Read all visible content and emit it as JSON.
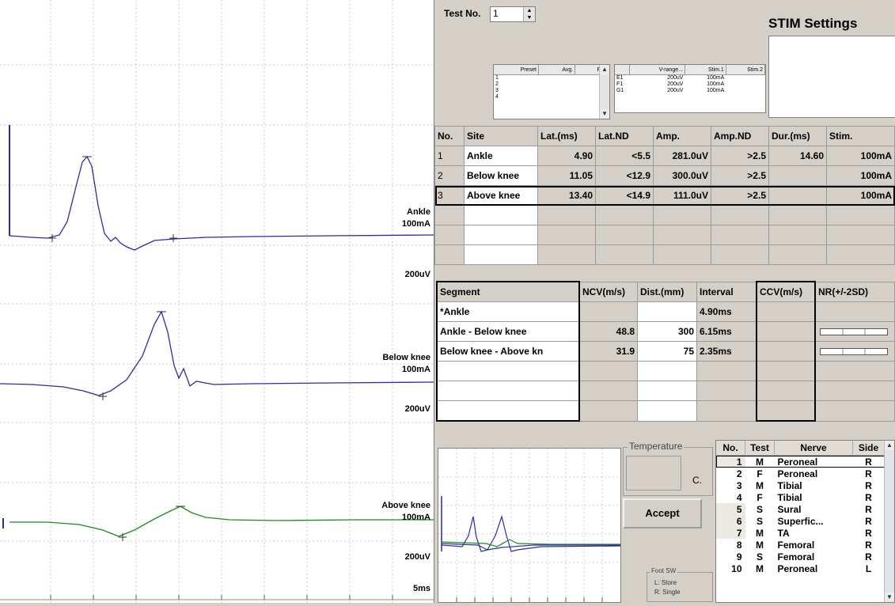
{
  "waveforms": {
    "traces": [
      {
        "site": "Ankle",
        "stim": "100mA",
        "scale": "200uV",
        "color": "#2b2ba8"
      },
      {
        "site": "Below knee",
        "stim": "100mA",
        "scale": "200uV",
        "color": "#2b2ba8"
      },
      {
        "site": "Above knee",
        "stim": "100mA",
        "scale": "200uV",
        "color": "#1f8a1f"
      }
    ],
    "time_scale": "5ms"
  },
  "header": {
    "test_no_label": "Test No.",
    "test_no_value": "1",
    "stim_settings_title": "STIM Settings"
  },
  "preset_table": {
    "columns": [
      "Preset",
      "Avg.",
      "Rej."
    ],
    "rows": [
      "1",
      "2",
      "3",
      "4"
    ]
  },
  "vrange_table": {
    "columns": [
      "V-range...",
      "Stim.1",
      "Stim.2"
    ],
    "rows": [
      {
        "name": "E1",
        "vrange": "200uV",
        "stim1": "100mA"
      },
      {
        "name": "F1",
        "vrange": "200uV",
        "stim1": "100mA"
      },
      {
        "name": "G1",
        "vrange": "200uV",
        "stim1": "100mA"
      }
    ]
  },
  "site_table": {
    "columns": [
      "No.",
      "Site",
      "Lat.(ms)",
      "Lat.ND",
      "Amp.",
      "Amp.ND",
      "Dur.(ms)",
      "Stim."
    ],
    "rows": [
      {
        "no": "1",
        "site": "Ankle",
        "lat": "4.90",
        "latnd": "<5.5",
        "amp": "281.0uV",
        "ampnd": ">2.5",
        "dur": "14.60",
        "stim": "100mA"
      },
      {
        "no": "2",
        "site": "Below knee",
        "lat": "11.05",
        "latnd": "<12.9",
        "amp": "300.0uV",
        "ampnd": ">2.5",
        "dur": "",
        "stim": "100mA"
      },
      {
        "no": "3",
        "site": "Above knee",
        "lat": "13.40",
        "latnd": "<14.9",
        "amp": "111.0uV",
        "ampnd": ">2.5",
        "dur": "",
        "stim": "100mA"
      }
    ]
  },
  "segment_table": {
    "columns": [
      "Segment",
      "NCV(m/s)",
      "Dist.(mm)",
      "Interval",
      "CCV(m/s)",
      "NR(+/-2SD)"
    ],
    "rows": [
      {
        "segment": "*Ankle",
        "ncv": "",
        "dist": "",
        "interval": "4.90ms"
      },
      {
        "segment": "Ankle - Below knee",
        "ncv": "48.8",
        "dist": "300",
        "interval": "6.15ms"
      },
      {
        "segment": "Below knee - Above kn",
        "ncv": "31.9",
        "dist": "75",
        "interval": "2.35ms"
      }
    ]
  },
  "temperature": {
    "label": "Temperature",
    "unit": "C."
  },
  "accept_label": "Accept",
  "foot_sw": {
    "title": "Foot SW",
    "line1": "L: Store",
    "line2": "R: Single"
  },
  "nerve_list": {
    "columns": [
      "No.",
      "Test",
      "Nerve",
      "Side"
    ],
    "rows": [
      {
        "no": "1",
        "test": "M",
        "nerve": "Peroneal",
        "side": "R"
      },
      {
        "no": "2",
        "test": "F",
        "nerve": "Peroneal",
        "side": "R"
      },
      {
        "no": "3",
        "test": "M",
        "nerve": "Tibial",
        "side": "R"
      },
      {
        "no": "4",
        "test": "F",
        "nerve": "Tibial",
        "side": "R"
      },
      {
        "no": "5",
        "test": "S",
        "nerve": "Sural",
        "side": "R"
      },
      {
        "no": "6",
        "test": "S",
        "nerve": "Superfic...",
        "side": "R"
      },
      {
        "no": "7",
        "test": "M",
        "nerve": "TA",
        "side": "R"
      },
      {
        "no": "8",
        "test": "M",
        "nerve": "Femoral",
        "side": "R"
      },
      {
        "no": "9",
        "test": "S",
        "nerve": "Femoral",
        "side": "R"
      },
      {
        "no": "10",
        "test": "M",
        "nerve": "Peroneal",
        "side": "L"
      }
    ]
  }
}
